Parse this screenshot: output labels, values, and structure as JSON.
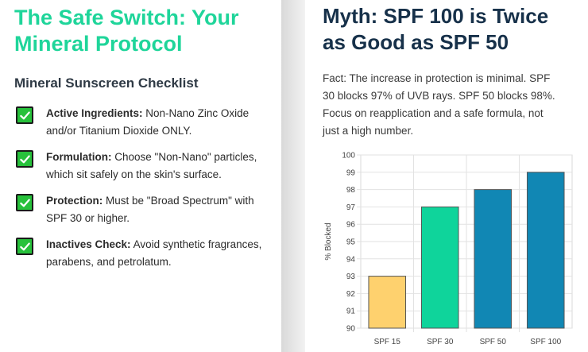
{
  "left": {
    "title": "The Safe Switch: Your Mineral Protocol",
    "subtitle": "Mineral Sunscreen Checklist",
    "items": [
      {
        "label": "Active Ingredients:",
        "text": " Non-Nano Zinc Oxide and/or Titanium Dioxide ONLY."
      },
      {
        "label": "Formulation:",
        "text": " Choose \"Non-Nano\" particles, which sit safely on the skin's surface."
      },
      {
        "label": "Protection:",
        "text": " Must be \"Broad Spectrum\" with SPF 30 or higher."
      },
      {
        "label": "Inactives Check:",
        "text": " Avoid synthetic fragrances, parabens, and petrolatum."
      }
    ],
    "check_icon": "checkmark-icon",
    "check_color": "#27c13b"
  },
  "right": {
    "title": "Myth: SPF 100 is Twice as Good as SPF 50",
    "fact": "Fact: The increase in protection is minimal. SPF 30 blocks 97% of UVB rays. SPF 50 blocks 98%. Focus on reapplication and a safe formula, not just a high number."
  },
  "chart_data": {
    "type": "bar",
    "categories": [
      "SPF 15",
      "SPF 30",
      "SPF 50",
      "SPF 100"
    ],
    "values": [
      93,
      97,
      98,
      99
    ],
    "colors": [
      "#fed16e",
      "#0fd49b",
      "#1187b4",
      "#1187b4"
    ],
    "ylabel": "% Blocked",
    "xlabel": "",
    "ylim": [
      90,
      100
    ],
    "yticks": [
      90,
      91,
      92,
      93,
      94,
      95,
      96,
      97,
      98,
      99,
      100
    ],
    "grid": true,
    "legend": "none"
  }
}
